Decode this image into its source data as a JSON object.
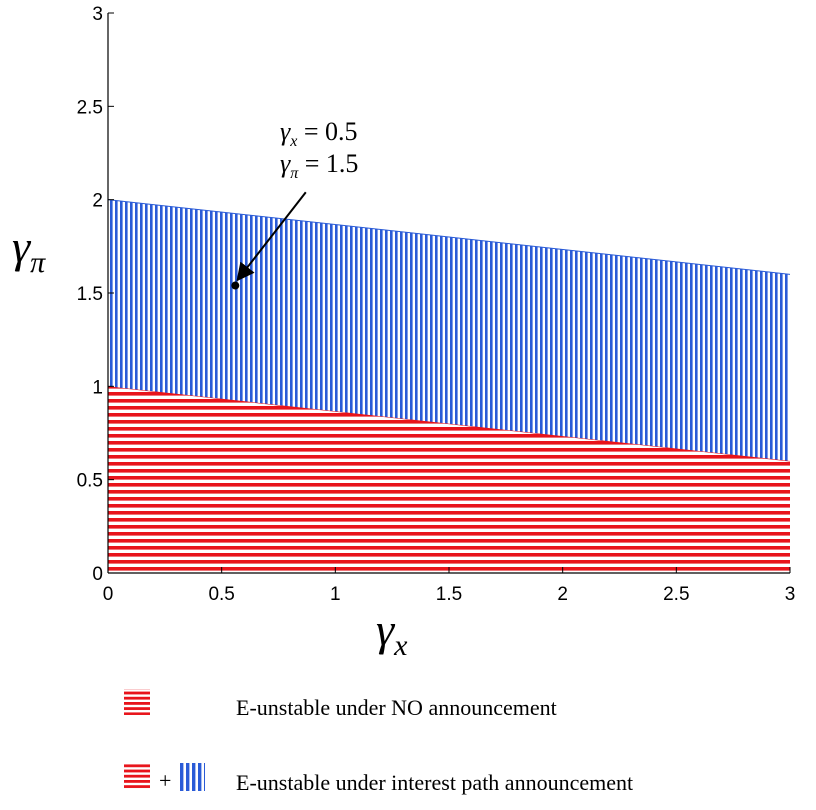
{
  "chart_data": {
    "type": "area",
    "xlim": [
      0,
      3
    ],
    "ylim": [
      0,
      3
    ],
    "x_ticks": [
      "0",
      "0.5",
      "1",
      "1.5",
      "2",
      "2.5",
      "3"
    ],
    "y_ticks": [
      "0",
      "0.5",
      "1",
      "1.5",
      "2",
      "2.5",
      "3"
    ],
    "x_tick_values": [
      0,
      0.5,
      1,
      1.5,
      2,
      2.5,
      3
    ],
    "y_tick_values": [
      0,
      0.5,
      1,
      1.5,
      2,
      2.5,
      3
    ],
    "xlabel": {
      "symbol": "γ",
      "subscript": "x"
    },
    "ylabel": {
      "symbol": "γ",
      "subscript": "π"
    },
    "grid": false,
    "regions": [
      {
        "name": "no-announcement",
        "pattern": "horizontal-stripes",
        "color": "#e8141b",
        "lower": [
          [
            0,
            0
          ],
          [
            3,
            0
          ]
        ],
        "upper": [
          [
            0,
            1.0
          ],
          [
            3,
            0.6
          ]
        ]
      },
      {
        "name": "interest-path-announcement",
        "pattern": "vertical-stripes",
        "color": "#2a5bd7",
        "lower": [
          [
            0,
            1.0
          ],
          [
            3,
            0.6
          ]
        ],
        "upper": [
          [
            0,
            2.0
          ],
          [
            3,
            1.6
          ]
        ]
      }
    ],
    "point": {
      "x": 0.56,
      "y": 1.54
    },
    "annotation": {
      "line1": {
        "symbol": "γ",
        "subscript": "x",
        "text": " = 0.5"
      },
      "line2": {
        "symbol": "γ",
        "subscript": "π",
        "text": " = 1.5"
      },
      "arrow_from": [
        0.87,
        2.04
      ],
      "arrow_to": [
        0.57,
        1.57
      ]
    },
    "legend": {
      "placement": "bottom",
      "plus": "+",
      "entries": [
        {
          "label": "E-unstable under NO announcement",
          "patterns": [
            "horizontal-stripes"
          ]
        },
        {
          "label": "E-unstable under interest path announcement",
          "patterns": [
            "horizontal-stripes",
            "vertical-stripes"
          ]
        }
      ]
    },
    "colors": {
      "red": "#e8141b",
      "blue": "#2a5bd7",
      "axis": "#000000"
    }
  }
}
